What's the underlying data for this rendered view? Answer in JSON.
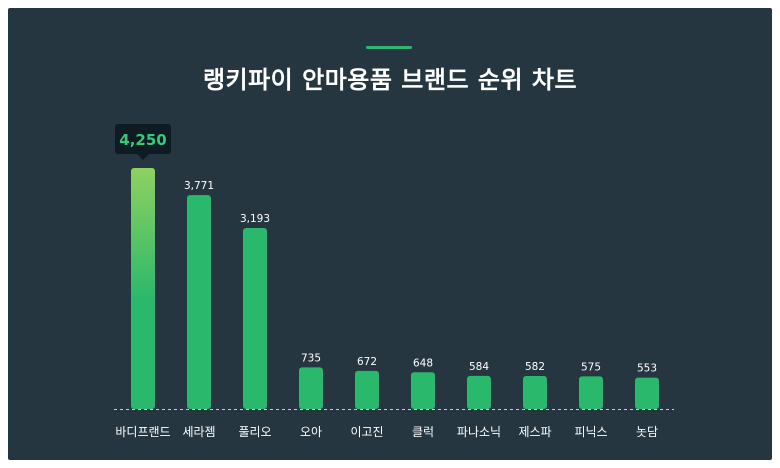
{
  "chart_data": {
    "type": "bar",
    "title": "랭키파이 안마용품 브랜드 순위 차트",
    "categories": [
      "바디프랜드",
      "세라젬",
      "풀리오",
      "오아",
      "이고진",
      "클럭",
      "파나소닉",
      "제스파",
      "피닉스",
      "놋담"
    ],
    "values": [
      4250,
      3771,
      3193,
      735,
      672,
      648,
      584,
      582,
      575,
      553
    ],
    "value_labels": [
      "4,250",
      "3,771",
      "3,193",
      "735",
      "672",
      "648",
      "584",
      "582",
      "575",
      "553"
    ],
    "highlight_index": 0,
    "ylim": [
      0,
      4250
    ],
    "grid": false,
    "legend": "none"
  },
  "colors": {
    "background": "#263640",
    "bar": "#2ab86c",
    "bar_highlight_top": "#8fd160",
    "text": "#ffffff",
    "accent": "#2eb872",
    "tooltip_bg": "#0f1b22",
    "tooltip_text": "#35c97a"
  }
}
